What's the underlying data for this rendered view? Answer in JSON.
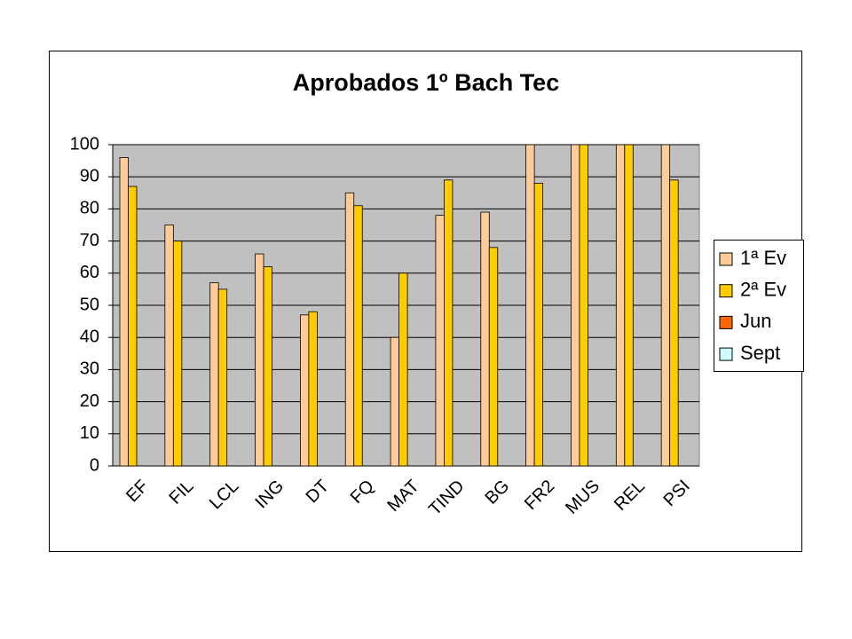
{
  "chart_data": {
    "type": "bar",
    "title": "Aprobados 1º Bach Tec",
    "categories": [
      "EF",
      "FIL",
      "LCL",
      "ING",
      "DT",
      "FQ",
      "MAT",
      "TIND",
      "BG",
      "FR2",
      "MUS",
      "REL",
      "PSI"
    ],
    "series": [
      {
        "name": "1ª Ev",
        "color": "#ffcc99",
        "values": [
          96,
          75,
          57,
          66,
          47,
          85,
          40,
          78,
          79,
          100,
          100,
          100,
          100
        ]
      },
      {
        "name": "2ª Ev",
        "color": "#ffcc00",
        "values": [
          87,
          70,
          55,
          62,
          48,
          81,
          60,
          89,
          68,
          88,
          100,
          100,
          89
        ]
      },
      {
        "name": "Jun",
        "color": "#ff6600",
        "values": [
          null,
          null,
          null,
          null,
          null,
          null,
          null,
          null,
          null,
          null,
          null,
          null,
          null
        ]
      },
      {
        "name": "Sept",
        "color": "#ccffff",
        "values": [
          null,
          null,
          null,
          null,
          null,
          null,
          null,
          null,
          null,
          null,
          null,
          null,
          null
        ]
      }
    ],
    "ylim": [
      0,
      100
    ],
    "yticks": [
      0,
      10,
      20,
      30,
      40,
      50,
      60,
      70,
      80,
      90,
      100
    ],
    "grid": true,
    "legend": "right"
  }
}
